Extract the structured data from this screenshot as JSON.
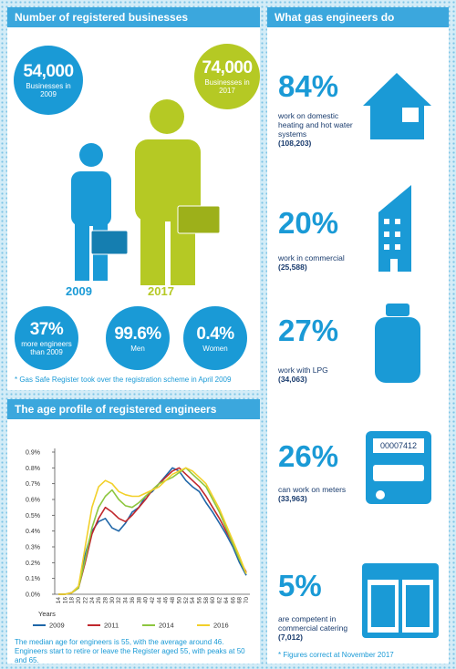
{
  "businesses": {
    "title": "Number of registered businesses",
    "count_2009": {
      "value": "54,000",
      "label": "Businesses in 2009"
    },
    "count_2017": {
      "value": "74,000",
      "label": "Businesses in 2017"
    },
    "year_2009": "2009",
    "year_2017": "2017",
    "stats": [
      {
        "value": "37%",
        "label": "more engineers than 2009"
      },
      {
        "value": "99.6%",
        "label": "Men"
      },
      {
        "value": "0.4%",
        "label": "Women"
      }
    ],
    "footnote": "* Gas Safe Register took over the registration scheme in April 2009"
  },
  "work": {
    "title": "What gas engineers do",
    "items": [
      {
        "percent": "84%",
        "description": "work on domestic heating and hot water systems",
        "count": "(108,203)"
      },
      {
        "percent": "20%",
        "description": "work in commercial",
        "count": "(25,588)"
      },
      {
        "percent": "27%",
        "description": "work with LPG",
        "count": "(34,063)"
      },
      {
        "percent": "26%",
        "description": "can work on meters",
        "count": "(33,963)"
      },
      {
        "percent": "5%",
        "description": "are competent in commercial catering",
        "count": "(7,012)"
      }
    ],
    "meter_reading": "00007412",
    "footnote": "* Figures correct at November 2017"
  },
  "chart_data": {
    "type": "line",
    "title": "The age profile of registered engineers",
    "categories": [
      "14",
      "16",
      "18",
      "20",
      "22",
      "24",
      "26",
      "28",
      "30",
      "32",
      "34",
      "36",
      "38",
      "40",
      "42",
      "44",
      "46",
      "48",
      "50",
      "52",
      "54",
      "56",
      "58",
      "60",
      "62",
      "64",
      "66",
      "68",
      "70"
    ],
    "legend_title": "Years",
    "series": [
      {
        "name": "2009",
        "color": "#1f66a8",
        "values": [
          0,
          0,
          0.01,
          0.05,
          0.25,
          0.4,
          0.46,
          0.48,
          0.42,
          0.4,
          0.45,
          0.52,
          0.55,
          0.62,
          0.65,
          0.7,
          0.75,
          0.8,
          0.78,
          0.72,
          0.68,
          0.65,
          0.58,
          0.52,
          0.45,
          0.38,
          0.3,
          0.2,
          0.12
        ]
      },
      {
        "name": "2011",
        "color": "#c0282d",
        "values": [
          0,
          0,
          0.01,
          0.04,
          0.2,
          0.38,
          0.48,
          0.55,
          0.52,
          0.48,
          0.46,
          0.5,
          0.55,
          0.6,
          0.66,
          0.7,
          0.74,
          0.78,
          0.8,
          0.76,
          0.72,
          0.68,
          0.62,
          0.55,
          0.48,
          0.4,
          0.32,
          0.22,
          0.14
        ]
      },
      {
        "name": "2014",
        "color": "#8dc63f",
        "values": [
          0,
          0,
          0.01,
          0.04,
          0.22,
          0.42,
          0.55,
          0.62,
          0.66,
          0.6,
          0.56,
          0.55,
          0.58,
          0.62,
          0.66,
          0.7,
          0.72,
          0.74,
          0.77,
          0.8,
          0.76,
          0.72,
          0.68,
          0.6,
          0.52,
          0.42,
          0.32,
          0.22,
          0.13
        ]
      },
      {
        "name": "2016",
        "color": "#f2d02a",
        "values": [
          0,
          0,
          0.01,
          0.05,
          0.3,
          0.55,
          0.68,
          0.72,
          0.7,
          0.65,
          0.63,
          0.62,
          0.62,
          0.64,
          0.66,
          0.68,
          0.72,
          0.76,
          0.78,
          0.8,
          0.78,
          0.74,
          0.7,
          0.62,
          0.54,
          0.44,
          0.34,
          0.24,
          0.13
        ]
      }
    ],
    "ylim": [
      0,
      0.9
    ],
    "yticks": [
      {
        "value": 0,
        "label": "0.0%"
      },
      {
        "value": 0.1,
        "label": "0.1%"
      },
      {
        "value": 0.2,
        "label": "0.2%"
      },
      {
        "value": 0.3,
        "label": "0.3%"
      },
      {
        "value": 0.4,
        "label": "0.4%"
      },
      {
        "value": 0.5,
        "label": "0.5%"
      },
      {
        "value": 0.6,
        "label": "0.6%"
      },
      {
        "value": 0.7,
        "label": "0.7%"
      },
      {
        "value": 0.8,
        "label": "0.8%"
      },
      {
        "value": 0.9,
        "label": "0.9%"
      }
    ],
    "note": "The median age for engineers is 55, with the average around 46. Engineers start to retire or leave the Register aged 55, with peaks at 50 and 65."
  }
}
